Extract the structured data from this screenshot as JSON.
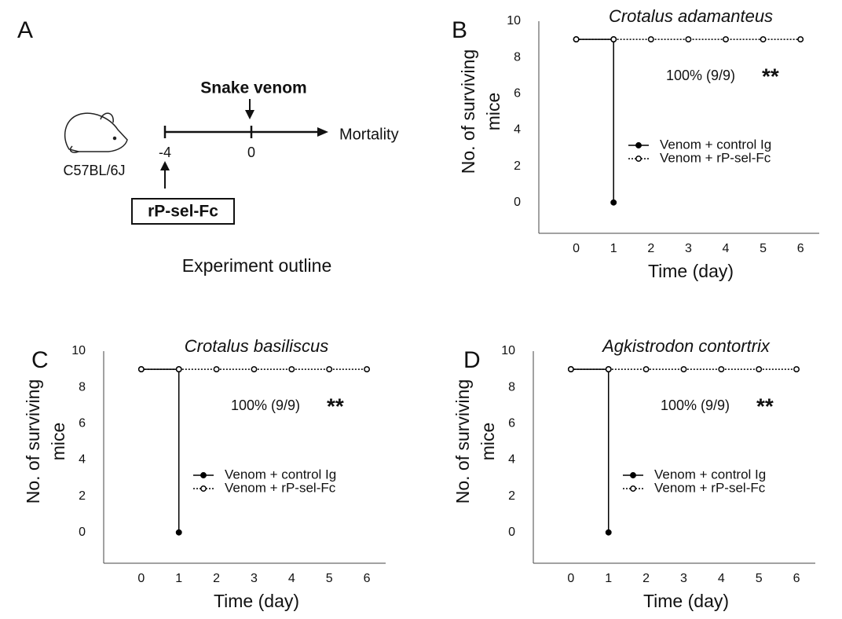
{
  "outline": {
    "label": "A",
    "strain": "C57BL/6J",
    "treatment": "rP-sel-Fc",
    "venom": "Snake venom",
    "endpoint": "Mortality",
    "days": [
      "-4",
      "0"
    ],
    "caption": "Experiment outline"
  },
  "chart_data": [
    {
      "type": "line",
      "panel": "B",
      "title": "Crotalus adamanteus",
      "xlabel": "Time  (day)",
      "ylabel": [
        "No. of surviving",
        "mice"
      ],
      "annotation": "100% (9/9)",
      "significance": "**",
      "xlim": [
        -1,
        6.5
      ],
      "xticks": [
        0,
        1,
        2,
        3,
        4,
        5,
        6
      ],
      "ylim": [
        -1.7,
        10
      ],
      "yticks": [
        0,
        2,
        4,
        6,
        8,
        10
      ],
      "grid": false,
      "series": [
        {
          "name": "Venom + control Ig",
          "color": "#000000",
          "marker": "filled",
          "line_style": "solid",
          "x": [
            0,
            1,
            1
          ],
          "values": [
            9,
            9,
            0
          ]
        },
        {
          "name": "Venom + rP-sel-Fc",
          "color": "#000000",
          "marker": "open",
          "line_style": "dotted",
          "x": [
            0,
            1,
            2,
            3,
            4,
            5,
            6
          ],
          "values": [
            9,
            9,
            9,
            9,
            9,
            9,
            9
          ]
        }
      ]
    },
    {
      "type": "line",
      "panel": "C",
      "title": "Crotalus basiliscus",
      "xlabel": "Time  (day)",
      "ylabel": [
        "No. of surviving",
        "mice"
      ],
      "annotation": "100% (9/9)",
      "significance": "**",
      "xlim": [
        -1,
        6.5
      ],
      "xticks": [
        0,
        1,
        2,
        3,
        4,
        5,
        6
      ],
      "ylim": [
        -1.7,
        10
      ],
      "yticks": [
        0,
        2,
        4,
        6,
        8,
        10
      ],
      "grid": false,
      "series": [
        {
          "name": "Venom + control Ig",
          "color": "#000000",
          "marker": "filled",
          "line_style": "solid",
          "x": [
            0,
            1,
            1
          ],
          "values": [
            9,
            9,
            0
          ]
        },
        {
          "name": "Venom + rP-sel-Fc",
          "color": "#000000",
          "marker": "open",
          "line_style": "dotted",
          "x": [
            0,
            1,
            2,
            3,
            4,
            5,
            6
          ],
          "values": [
            9,
            9,
            9,
            9,
            9,
            9,
            9
          ]
        }
      ]
    },
    {
      "type": "line",
      "panel": "D",
      "title": "Agkistrodon contortrix",
      "xlabel": "Time  (day)",
      "ylabel": [
        "No. of surviving",
        "mice"
      ],
      "annotation": "100% (9/9)",
      "significance": "**",
      "xlim": [
        -1,
        6.5
      ],
      "xticks": [
        0,
        1,
        2,
        3,
        4,
        5,
        6
      ],
      "ylim": [
        -1.7,
        10
      ],
      "yticks": [
        0,
        2,
        4,
        6,
        8,
        10
      ],
      "grid": false,
      "series": [
        {
          "name": "Venom + control Ig",
          "color": "#000000",
          "marker": "filled",
          "line_style": "solid",
          "x": [
            0,
            1,
            1
          ],
          "values": [
            9,
            9,
            0
          ]
        },
        {
          "name": "Venom + rP-sel-Fc",
          "color": "#000000",
          "marker": "open",
          "line_style": "dotted",
          "x": [
            0,
            1,
            2,
            3,
            4,
            5,
            6
          ],
          "values": [
            9,
            9,
            9,
            9,
            9,
            9,
            9
          ]
        }
      ]
    }
  ]
}
